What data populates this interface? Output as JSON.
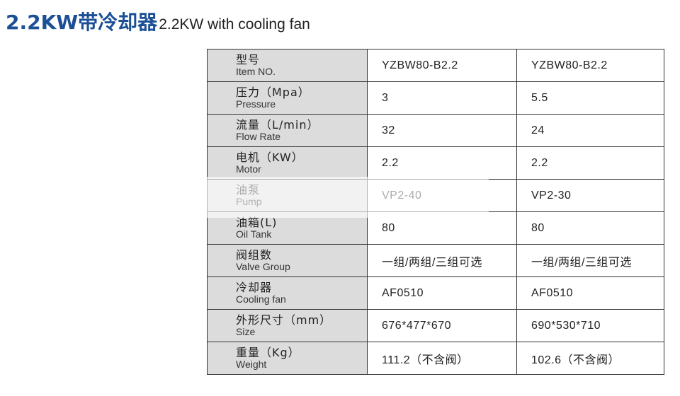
{
  "title": {
    "cn": "2.2KW带冷却器",
    "en": "2.2KW with cooling fan"
  },
  "table": {
    "rows": [
      {
        "cn": "型号",
        "en": "Item NO.",
        "v1": "YZBW80-B2.2",
        "v2": "YZBW80-B2.2"
      },
      {
        "cn": "压力（Mpa）",
        "en": "Pressure",
        "v1": "3",
        "v2": "5.5"
      },
      {
        "cn": "流量（L/min）",
        "en": "Flow Rate",
        "v1": "32",
        "v2": "24"
      },
      {
        "cn": "电机（KW）",
        "en": "Motor",
        "v1": "2.2",
        "v2": "2.2"
      },
      {
        "cn": "油泵",
        "en": "Pump",
        "v1": "VP2-40",
        "v2": "VP2-30"
      },
      {
        "cn": "油箱(L)",
        "en": "Oil Tank",
        "v1": "80",
        "v2": "80"
      },
      {
        "cn": "阀组数",
        "en": "Valve Group",
        "v1": "一组/两组/三组可选",
        "v2": "一组/两组/三组可选"
      },
      {
        "cn": "冷却器",
        "en": "Cooling fan",
        "v1": "AF0510",
        "v2": "AF0510"
      },
      {
        "cn": "外形尺寸（mm）",
        "en": "Size",
        "v1": "676*477*670",
        "v2": "690*530*710"
      },
      {
        "cn": "重量（Kg）",
        "en": "Weight",
        "v1": "111.2（不含阀）",
        "v2": "102.6（不含阀）"
      }
    ]
  }
}
